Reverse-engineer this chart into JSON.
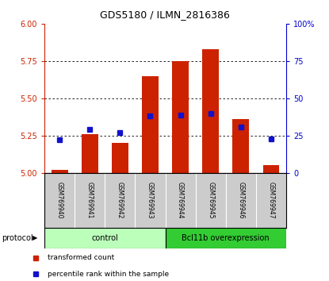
{
  "title": "GDS5180 / ILMN_2816386",
  "samples": [
    "GSM769940",
    "GSM769941",
    "GSM769942",
    "GSM769943",
    "GSM769944",
    "GSM769945",
    "GSM769946",
    "GSM769947"
  ],
  "red_values": [
    5.02,
    5.26,
    5.2,
    5.65,
    5.75,
    5.83,
    5.36,
    5.05
  ],
  "blue_values_left": [
    5.22,
    5.29,
    5.27,
    5.38,
    5.39,
    5.4,
    5.31,
    5.23
  ],
  "ylim_left": [
    5.0,
    6.0
  ],
  "ylim_right": [
    0,
    100
  ],
  "yticks_left": [
    5.0,
    5.25,
    5.5,
    5.75,
    6.0
  ],
  "yticks_right": [
    0,
    25,
    50,
    75,
    100
  ],
  "control_label": "control",
  "treatment_label": "Bcl11b overexpression",
  "protocol_label": "protocol",
  "legend_red": "transformed count",
  "legend_blue": "percentile rank within the sample",
  "bar_color": "#cc2200",
  "blue_color": "#1111cc",
  "control_color": "#bbffbb",
  "treatment_color": "#33cc33",
  "tick_label_color_left": "#cc2200",
  "tick_label_color_right": "#0000cc",
  "baseline": 5.0,
  "bar_width": 0.55,
  "n_control": 4,
  "n_treatment": 4
}
